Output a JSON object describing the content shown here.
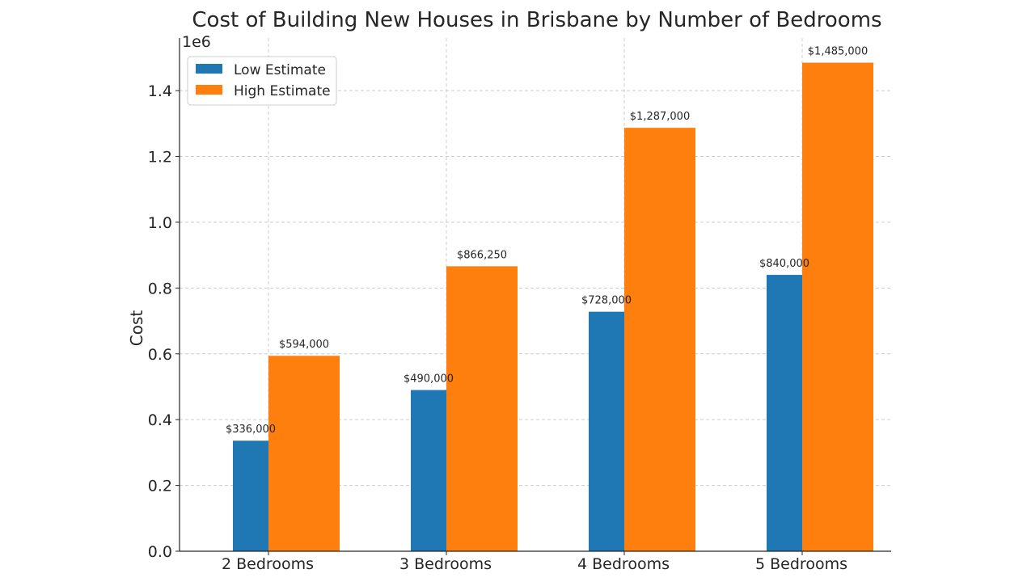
{
  "chart_data": {
    "type": "bar",
    "title": "Cost of Building New Houses in Brisbane by Number of Bedrooms",
    "ylabel": "Cost",
    "xlabel": "",
    "y_offset_text": "1e6",
    "categories": [
      "2 Bedrooms",
      "3 Bedrooms",
      "4 Bedrooms",
      "5 Bedrooms"
    ],
    "series": [
      {
        "name": "Low Estimate",
        "color": "#1f77b4",
        "values": [
          336000,
          490000,
          728000,
          840000
        ],
        "labels": [
          "$336,000",
          "$490,000",
          "$728,000",
          "$840,000"
        ]
      },
      {
        "name": "High Estimate",
        "color": "#ff7f0e",
        "values": [
          594000,
          866250,
          1287000,
          1485000
        ],
        "labels": [
          "$594,000",
          "$866,250",
          "$1,287,000",
          "$1,485,000"
        ]
      }
    ],
    "ylim": [
      0,
      1560000
    ],
    "yticks": [
      0,
      200000,
      400000,
      600000,
      800000,
      1000000,
      1200000,
      1400000
    ],
    "ytick_labels": [
      "0.0",
      "0.2",
      "0.4",
      "0.6",
      "0.8",
      "1.0",
      "1.2",
      "1.4"
    ],
    "grid": true,
    "legend_position": "top-left"
  }
}
